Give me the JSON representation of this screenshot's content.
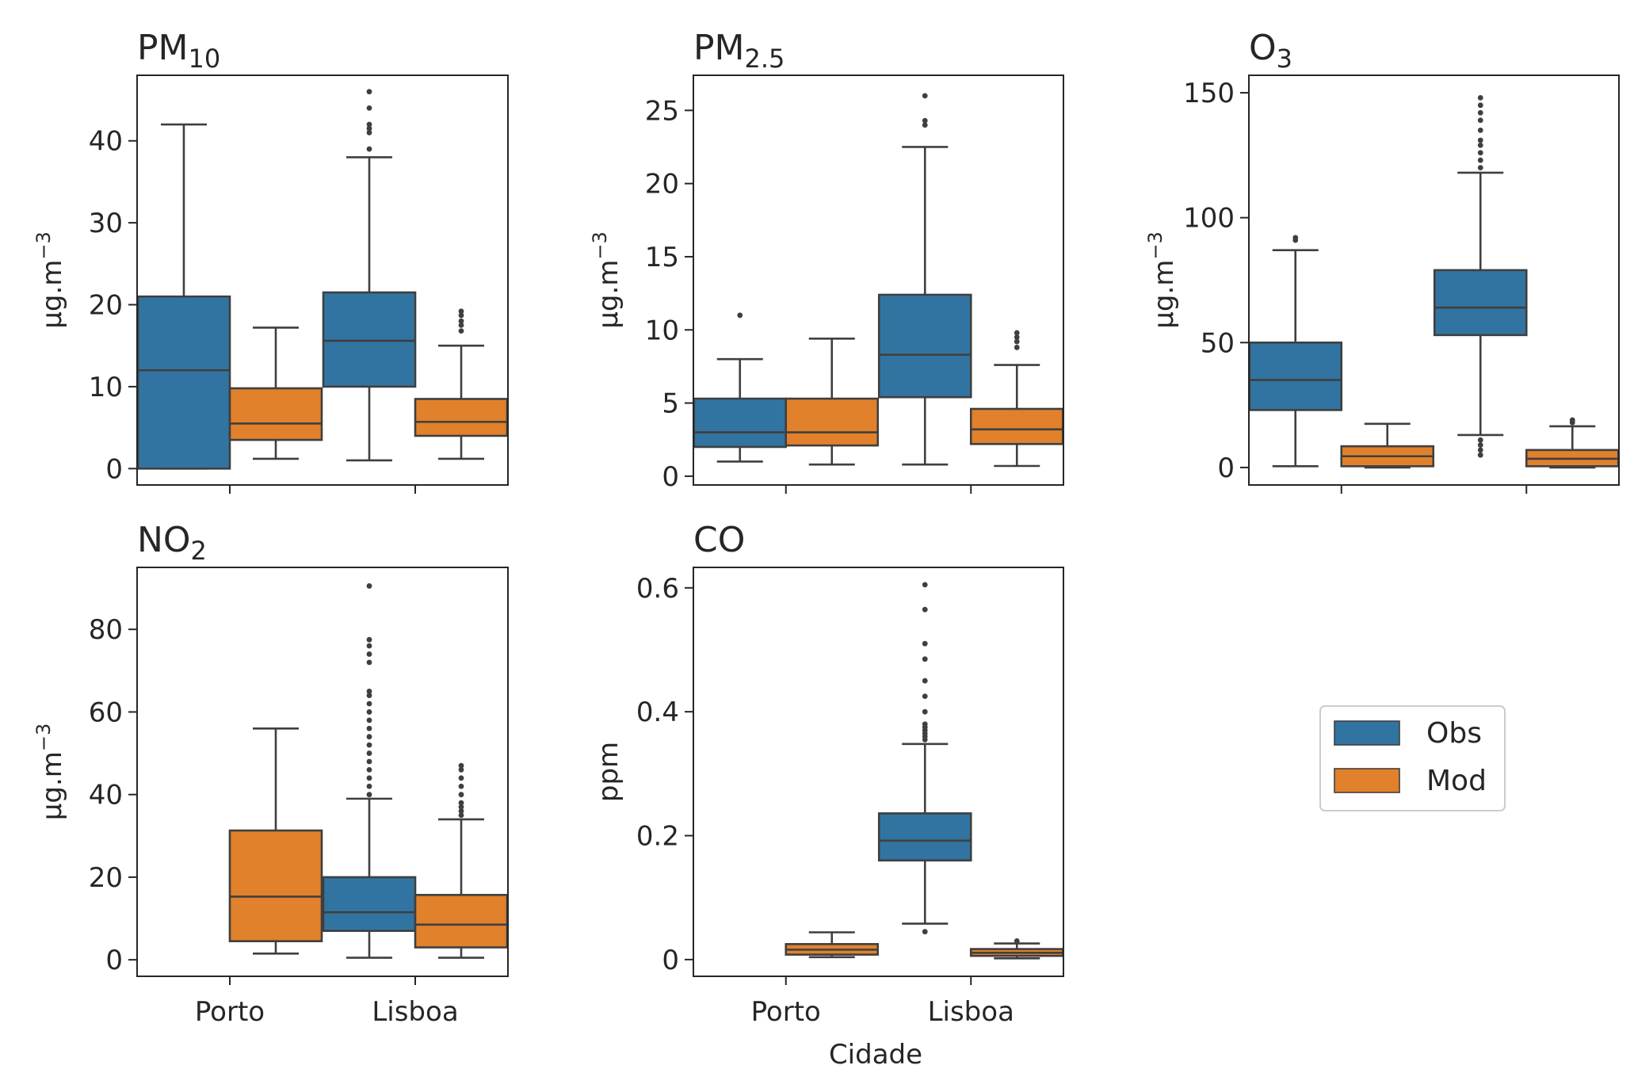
{
  "colors": {
    "obs": "#3274a1",
    "mod": "#e1812c",
    "line": "#3f3f3f",
    "axes": "#262626"
  },
  "legend": {
    "placement": "center-right",
    "items": [
      {
        "label": "Obs",
        "color": "#3274a1"
      },
      {
        "label": "Mod",
        "color": "#e1812c"
      }
    ]
  },
  "shared_xlabel": "Cidade",
  "chart_data": [
    {
      "type": "boxplot",
      "title": "PM",
      "title_sub": "10",
      "ylabel": "μg.m",
      "ylabel_sup": "−3",
      "ylim": [
        -2,
        48
      ],
      "yticks": [
        0,
        10,
        20,
        30,
        40
      ],
      "categories": [
        "Porto",
        "Lisboa"
      ],
      "show_xticklabels": false,
      "series": [
        {
          "name": "Obs",
          "boxes": [
            {
              "category": "Porto",
              "whislo": 0,
              "q1": 0,
              "median": 12,
              "q3": 21,
              "whishi": 42,
              "fliers": []
            },
            {
              "category": "Lisboa",
              "whislo": 1,
              "q1": 10,
              "median": 15.6,
              "q3": 21.5,
              "whishi": 38,
              "fliers": [
                39,
                41,
                41.5,
                42,
                44,
                46
              ]
            }
          ]
        },
        {
          "name": "Mod",
          "boxes": [
            {
              "category": "Porto",
              "whislo": 1.2,
              "q1": 3.5,
              "median": 5.5,
              "q3": 9.8,
              "whishi": 17.2,
              "fliers": []
            },
            {
              "category": "Lisboa",
              "whislo": 1.2,
              "q1": 4,
              "median": 5.7,
              "q3": 8.5,
              "whishi": 15,
              "fliers": [
                16.8,
                17.5,
                18,
                18.7,
                19.2
              ]
            }
          ]
        }
      ]
    },
    {
      "type": "boxplot",
      "title": "PM",
      "title_sub": "2.5",
      "ylabel": "μg.m",
      "ylabel_sup": "−3",
      "ylim": [
        -0.6,
        27.4
      ],
      "yticks": [
        0,
        5,
        10,
        15,
        20,
        25
      ],
      "categories": [
        "Porto",
        "Lisboa"
      ],
      "show_xticklabels": false,
      "series": [
        {
          "name": "Obs",
          "boxes": [
            {
              "category": "Porto",
              "whislo": 1,
              "q1": 2,
              "median": 3,
              "q3": 5.3,
              "whishi": 8,
              "fliers": [
                11
              ]
            },
            {
              "category": "Lisboa",
              "whislo": 0.8,
              "q1": 5.4,
              "median": 8.3,
              "q3": 12.4,
              "whishi": 22.5,
              "fliers": [
                24,
                24.3,
                26
              ]
            }
          ]
        },
        {
          "name": "Mod",
          "boxes": [
            {
              "category": "Porto",
              "whislo": 0.8,
              "q1": 2.1,
              "median": 3,
              "q3": 5.3,
              "whishi": 9.4,
              "fliers": []
            },
            {
              "category": "Lisboa",
              "whislo": 0.7,
              "q1": 2.2,
              "median": 3.2,
              "q3": 4.6,
              "whishi": 7.6,
              "fliers": [
                8.8,
                9.2,
                9.5,
                9.8
              ]
            }
          ]
        }
      ]
    },
    {
      "type": "boxplot",
      "title": "O",
      "title_sub": "3",
      "ylabel": "μg.m",
      "ylabel_sup": "−3",
      "ylim": [
        -7,
        157
      ],
      "yticks": [
        0,
        50,
        100,
        150
      ],
      "categories": [
        "Porto",
        "Lisboa"
      ],
      "show_xticklabels": false,
      "series": [
        {
          "name": "Obs",
          "boxes": [
            {
              "category": "Porto",
              "whislo": 0.5,
              "q1": 23,
              "median": 35,
              "q3": 50,
              "whishi": 87,
              "fliers": [
                91,
                92
              ]
            },
            {
              "category": "Lisboa",
              "whislo": 13,
              "q1": 53,
              "median": 64,
              "q3": 79,
              "whishi": 118,
              "fliers": [
                5,
                7,
                9,
                11,
                120,
                123,
                126,
                129,
                131,
                135,
                139,
                142,
                145,
                148
              ]
            }
          ]
        },
        {
          "name": "Mod",
          "boxes": [
            {
              "category": "Porto",
              "whislo": 0,
              "q1": 0.5,
              "median": 4.5,
              "q3": 8.5,
              "whishi": 17.5,
              "fliers": []
            },
            {
              "category": "Lisboa",
              "whislo": 0,
              "q1": 0.5,
              "median": 3.5,
              "q3": 7,
              "whishi": 16.5,
              "fliers": [
                18,
                19
              ]
            }
          ]
        }
      ]
    },
    {
      "type": "boxplot",
      "title": "NO",
      "title_sub": "2",
      "ylabel": "μg.m",
      "ylabel_sup": "−3",
      "ylim": [
        -4,
        95
      ],
      "yticks": [
        0,
        20,
        40,
        60,
        80
      ],
      "categories": [
        "Porto",
        "Lisboa"
      ],
      "show_xticklabels": true,
      "series": [
        {
          "name": "Obs",
          "boxes": [
            {
              "category": "Lisboa",
              "whislo": 0.5,
              "q1": 7,
              "median": 11.5,
              "q3": 20,
              "whishi": 39,
              "fliers": [
                40,
                42,
                44,
                46,
                48,
                50,
                52,
                54,
                56,
                58,
                60,
                62,
                64,
                65,
                72,
                74,
                76,
                77.5,
                90.5
              ]
            }
          ]
        },
        {
          "name": "Mod",
          "boxes": [
            {
              "category": "Porto",
              "whislo": 1.5,
              "q1": 4.5,
              "median": 15.3,
              "q3": 31.3,
              "whishi": 56,
              "fliers": []
            },
            {
              "category": "Lisboa",
              "whislo": 0.5,
              "q1": 3,
              "median": 8.5,
              "q3": 15.7,
              "whishi": 34,
              "fliers": [
                35,
                36,
                37,
                38,
                40,
                42,
                44,
                46,
                47
              ]
            }
          ]
        }
      ]
    },
    {
      "type": "boxplot",
      "title": "CO",
      "title_sub": "",
      "ylabel": "ppm",
      "ylabel_sup": "",
      "ylim": [
        -0.027,
        0.633
      ],
      "yticks": [
        0.0,
        0.2,
        0.4,
        0.6
      ],
      "categories": [
        "Porto",
        "Lisboa"
      ],
      "show_xticklabels": true,
      "series": [
        {
          "name": "Obs",
          "boxes": [
            {
              "category": "Lisboa",
              "whislo": 0.058,
              "q1": 0.16,
              "median": 0.192,
              "q3": 0.236,
              "whishi": 0.348,
              "fliers": [
                0.045,
                0.355,
                0.36,
                0.365,
                0.37,
                0.375,
                0.38,
                0.4,
                0.425,
                0.45,
                0.485,
                0.51,
                0.565,
                0.605
              ]
            }
          ]
        },
        {
          "name": "Mod",
          "boxes": [
            {
              "category": "Porto",
              "whislo": 0.004,
              "q1": 0.008,
              "median": 0.016,
              "q3": 0.025,
              "whishi": 0.044,
              "fliers": []
            },
            {
              "category": "Lisboa",
              "whislo": 0.002,
              "q1": 0.006,
              "median": 0.011,
              "q3": 0.017,
              "whishi": 0.026,
              "fliers": [
                0.03
              ]
            }
          ]
        }
      ]
    }
  ]
}
